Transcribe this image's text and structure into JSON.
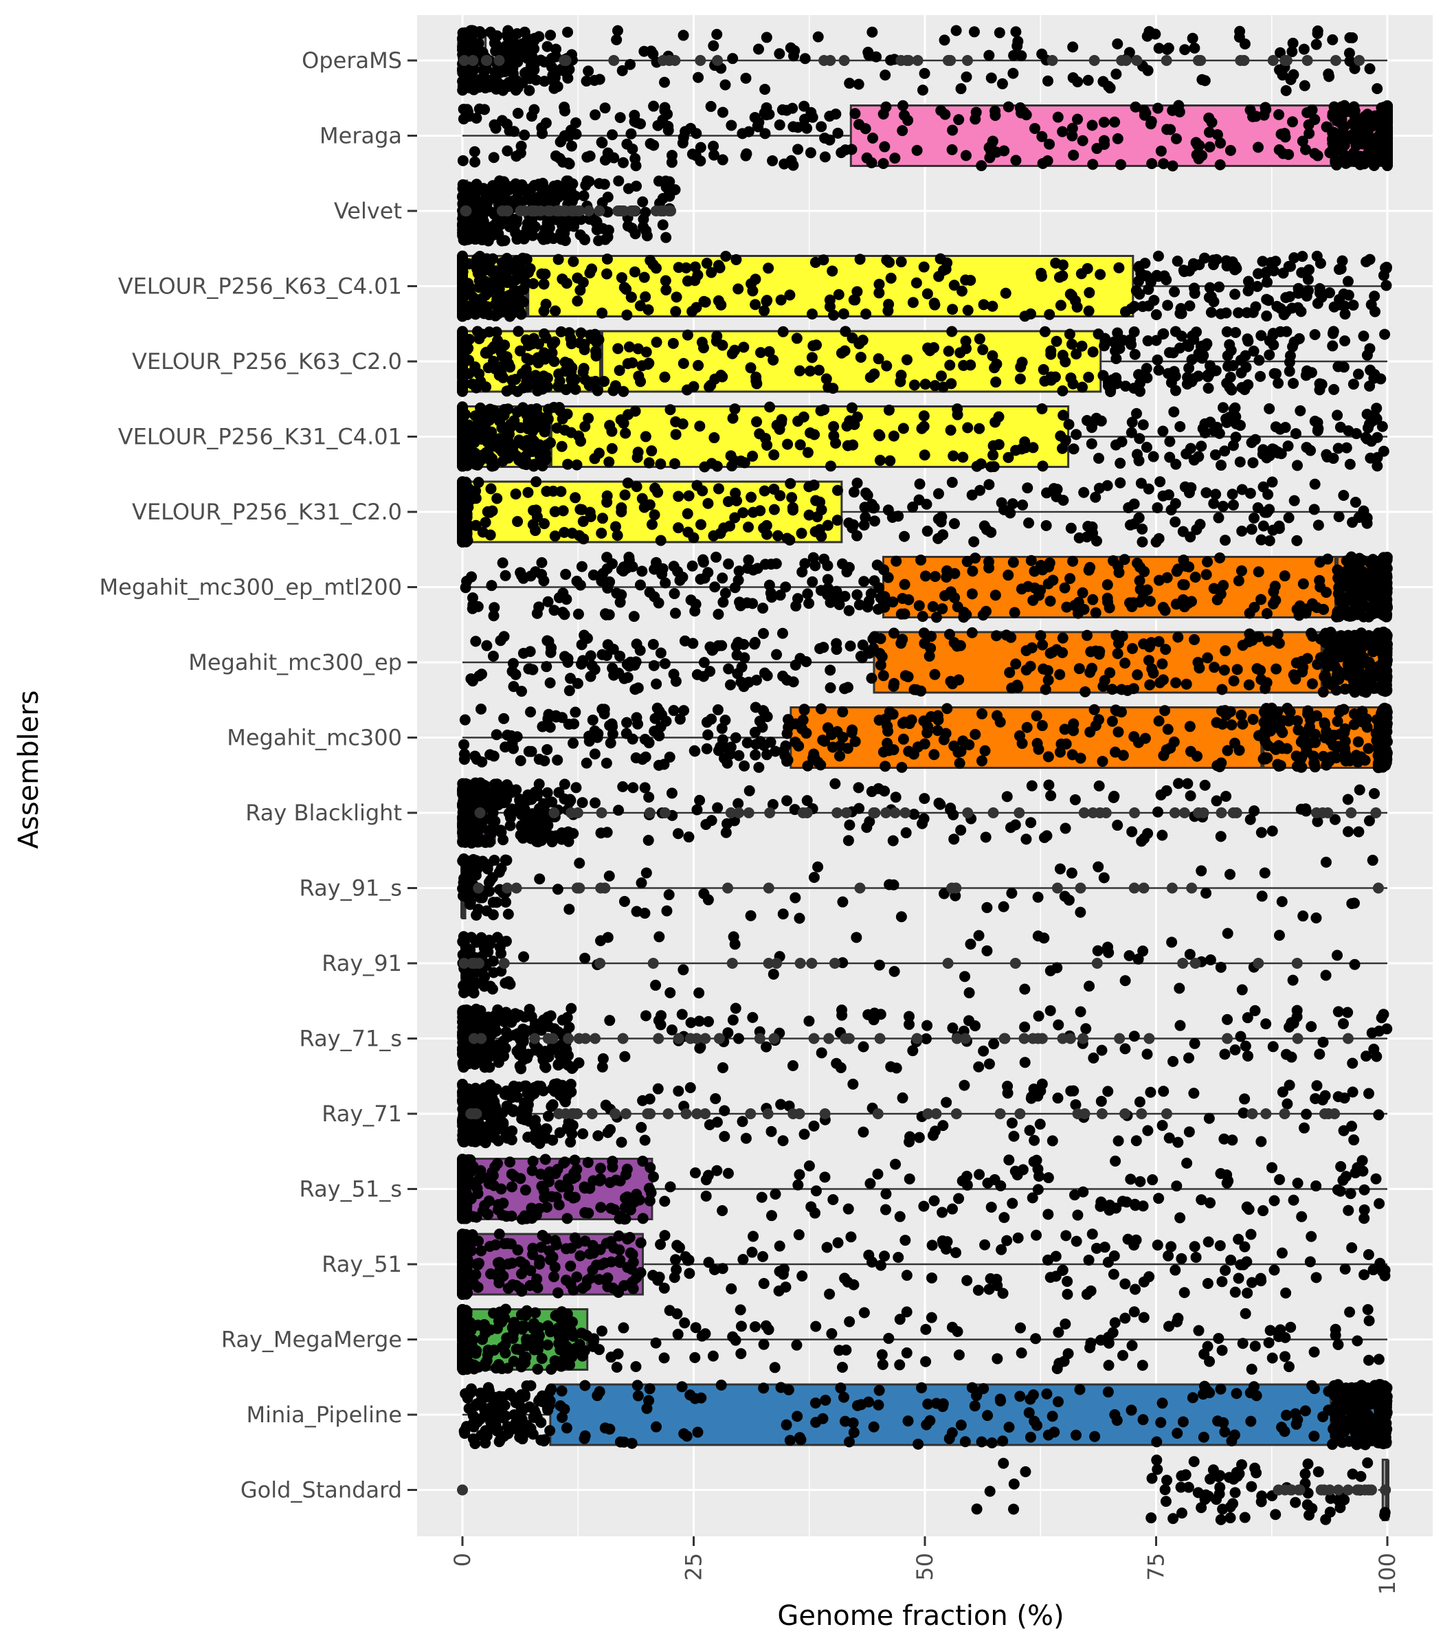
{
  "chart_data": {
    "type": "box",
    "xlabel": "Genome fraction (%)",
    "ylabel": "Assemblers",
    "xlim": [
      0,
      100
    ],
    "x_ticks": [
      "0",
      "25",
      "50",
      "75",
      "100"
    ],
    "x_tick_values": [
      0,
      25,
      50,
      75,
      100
    ],
    "grid": true,
    "legend": "none",
    "panel_background": "#ebebeb",
    "categories": [
      "OperaMS",
      "Meraga",
      "Velvet",
      "VELOUR_P256_K63_C4.01",
      "VELOUR_P256_K63_C2.0",
      "VELOUR_P256_K31_C4.01",
      "VELOUR_P256_K31_C2.0",
      "Megahit_mc300_ep_mtl200",
      "Megahit_mc300_ep",
      "Megahit_mc300",
      "Ray Blacklight",
      "Ray_91_s",
      "Ray_91",
      "Ray_71_s",
      "Ray_71",
      "Ray_51_s",
      "Ray_51",
      "Ray_MegaMerge",
      "Minia_Pipeline",
      "Gold_Standard"
    ],
    "boxes": [
      {
        "name": "OperaMS",
        "q1": 0,
        "median": 0.5,
        "q3": 2.5,
        "whisker_high": 100,
        "color": "#999999",
        "points": "sparse"
      },
      {
        "name": "Meraga",
        "q1": 42,
        "median": 94,
        "q3": 100,
        "whisker_low": 0,
        "whisker_high": 100,
        "color": "#f781bf",
        "points": "dense"
      },
      {
        "name": "Velvet",
        "q1": 0,
        "median": 0,
        "q3": 0.5,
        "whisker_high": 23,
        "color": "#999999",
        "points": "sparse"
      },
      {
        "name": "VELOUR_P256_K63_C4.01",
        "q1": 0,
        "median": 7,
        "q3": 72.5,
        "whisker_high": 100,
        "color": "#ffff33",
        "points": "dense"
      },
      {
        "name": "VELOUR_P256_K63_C2.0",
        "q1": 0,
        "median": 15,
        "q3": 69,
        "whisker_high": 100,
        "color": "#ffff33",
        "points": "dense"
      },
      {
        "name": "VELOUR_P256_K31_C4.01",
        "q1": 0,
        "median": 9.5,
        "q3": 65.5,
        "whisker_high": 100,
        "color": "#ffff33",
        "points": "dense"
      },
      {
        "name": "VELOUR_P256_K31_C2.0",
        "q1": 0,
        "median": 0.5,
        "q3": 41,
        "whisker_high": 98,
        "color": "#ffff33",
        "points": "dense"
      },
      {
        "name": "Megahit_mc300_ep_mtl200",
        "q1": 45.5,
        "median": 94.5,
        "q3": 99.5,
        "whisker_low": 0,
        "whisker_high": 100,
        "color": "#ff7f00",
        "points": "dense"
      },
      {
        "name": "Megahit_mc300_ep",
        "q1": 44.5,
        "median": 93,
        "q3": 99.5,
        "whisker_low": 0,
        "whisker_high": 100,
        "color": "#ff7f00",
        "points": "dense"
      },
      {
        "name": "Megahit_mc300",
        "q1": 35.5,
        "median": 86.5,
        "q3": 99,
        "whisker_low": 0,
        "whisker_high": 100,
        "color": "#ff7f00",
        "points": "dense"
      },
      {
        "name": "Ray Blacklight",
        "q1": 0,
        "median": 0.5,
        "q3": 3.5,
        "whisker_high": 100,
        "color": "#984ea3",
        "points": "sparse"
      },
      {
        "name": "Ray_91_s",
        "q1": 0,
        "median": 0,
        "q3": 0.3,
        "whisker_high": 100,
        "color": "#984ea3",
        "points": "very-sparse"
      },
      {
        "name": "Ray_91",
        "q1": 0,
        "median": 0,
        "q3": 0.3,
        "whisker_high": 100,
        "color": "#984ea3",
        "points": "very-sparse"
      },
      {
        "name": "Ray_71_s",
        "q1": 0,
        "median": 0,
        "q3": 0.3,
        "whisker_high": 100,
        "color": "#984ea3",
        "points": "sparse"
      },
      {
        "name": "Ray_71",
        "q1": 0,
        "median": 0,
        "q3": 0.3,
        "whisker_high": 100,
        "color": "#984ea3",
        "points": "sparse"
      },
      {
        "name": "Ray_51_s",
        "q1": 0,
        "median": 0.5,
        "q3": 20.5,
        "whisker_high": 100,
        "color": "#984ea3",
        "points": "dense"
      },
      {
        "name": "Ray_51",
        "q1": 0,
        "median": 0.5,
        "q3": 19.5,
        "whisker_high": 100,
        "color": "#984ea3",
        "points": "dense"
      },
      {
        "name": "Ray_MegaMerge",
        "q1": 0,
        "median": 0.5,
        "q3": 13.5,
        "whisker_high": 100,
        "color": "#4daf4a",
        "points": "dense"
      },
      {
        "name": "Minia_Pipeline",
        "q1": 9.5,
        "median": 94,
        "q3": 99,
        "whisker_low": 0,
        "whisker_high": 100,
        "color": "#377eb8",
        "points": "dense"
      },
      {
        "name": "Gold_Standard",
        "q1": 99.5,
        "median": 100,
        "q3": 100,
        "whisker_low": 99,
        "whisker_high": 100,
        "color": "#999999",
        "points": "gold"
      }
    ]
  }
}
